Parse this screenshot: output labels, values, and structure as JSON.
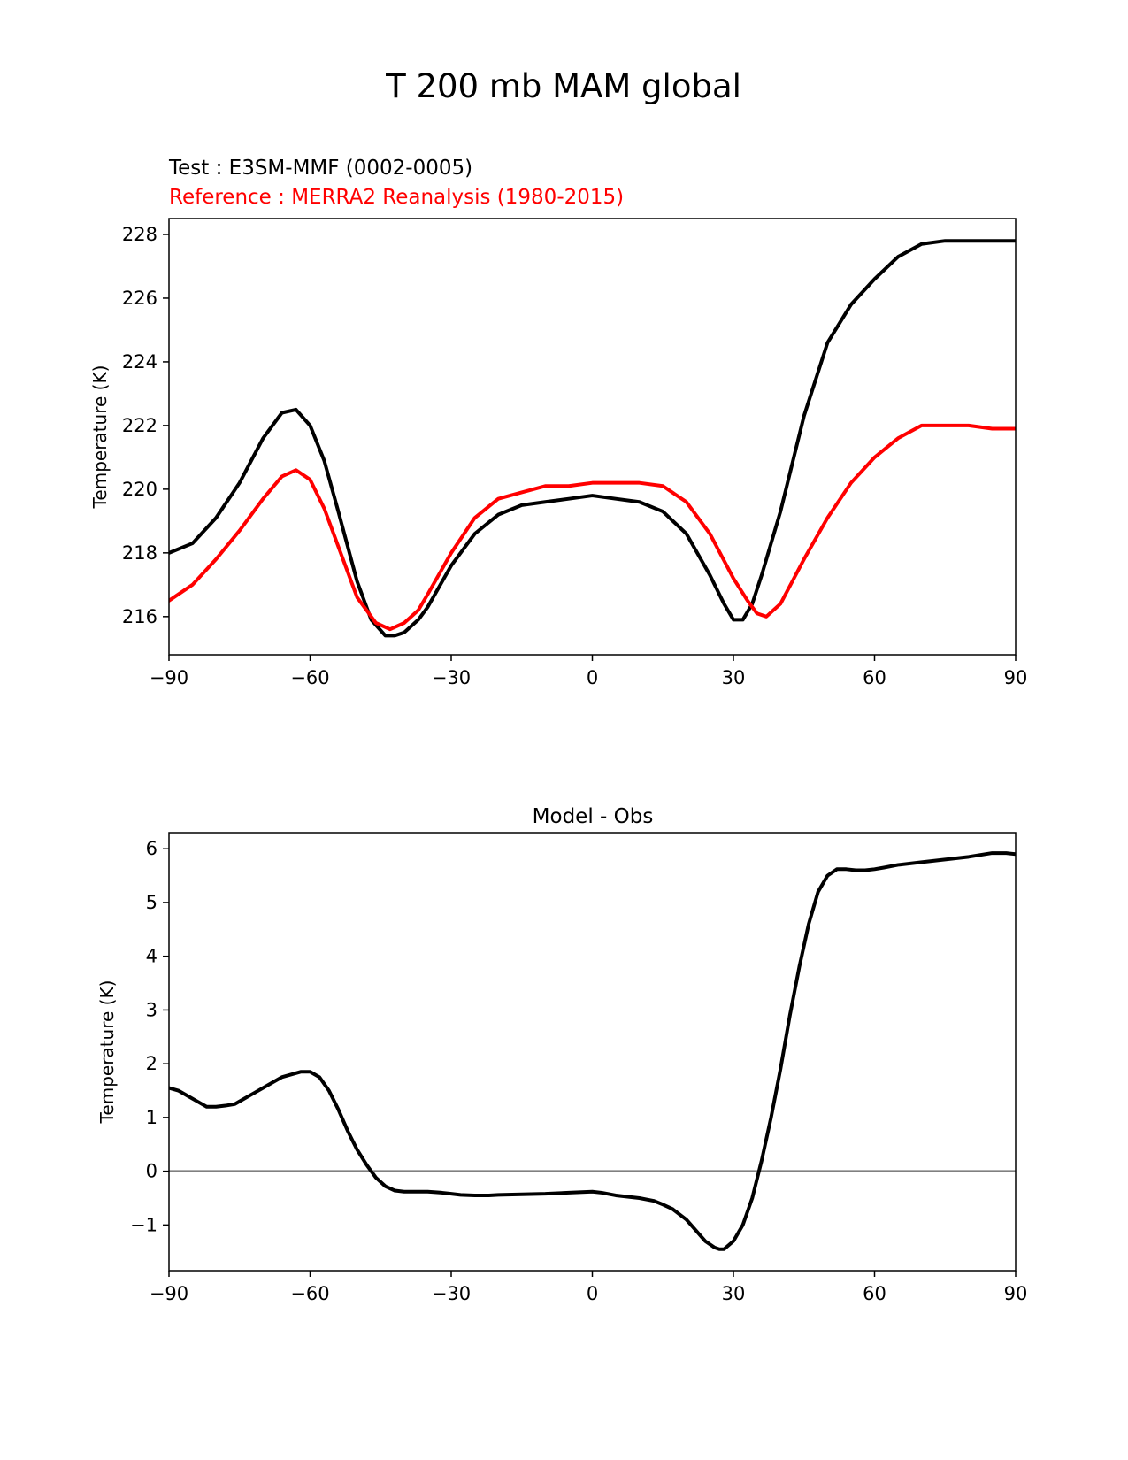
{
  "title": "T 200 mb MAM global",
  "colors": {
    "test": "#000000",
    "reference": "#ff0000",
    "zero_line": "#808080"
  },
  "chart_data": [
    {
      "type": "line",
      "title": "",
      "legend": [
        {
          "text": "Test : E3SM-MMF (0002-0005)",
          "color": "#000000"
        },
        {
          "text": "Reference : MERRA2 Reanalysis (1980-2015)",
          "color": "#ff0000"
        }
      ],
      "xlabel": "",
      "ylabel": "Temperature (K)",
      "xlim": [
        -90,
        90
      ],
      "ylim": [
        214.8,
        228.5
      ],
      "xticks": [
        -90,
        -60,
        -30,
        0,
        30,
        60,
        90
      ],
      "xtick_labels": [
        "−90",
        "−60",
        "−30",
        "0",
        "30",
        "60",
        "90"
      ],
      "yticks": [
        216,
        218,
        220,
        222,
        224,
        226,
        228
      ],
      "ytick_labels": [
        "216",
        "218",
        "220",
        "222",
        "224",
        "226",
        "228"
      ],
      "series": [
        {
          "name": "Test : E3SM-MMF (0002-0005)",
          "color": "#000000",
          "x": [
            -90,
            -85,
            -80,
            -75,
            -70,
            -66,
            -63,
            -60,
            -57,
            -54,
            -50,
            -47,
            -44,
            -42,
            -40,
            -37,
            -35,
            -30,
            -25,
            -20,
            -15,
            -10,
            -5,
            0,
            5,
            10,
            15,
            20,
            25,
            28,
            30,
            32,
            34,
            36,
            40,
            45,
            50,
            55,
            60,
            65,
            70,
            75,
            80,
            85,
            90
          ],
          "y": [
            218.0,
            218.3,
            219.1,
            220.2,
            221.6,
            222.4,
            222.5,
            222.0,
            220.9,
            219.3,
            217.1,
            215.9,
            215.4,
            215.4,
            215.5,
            215.9,
            216.3,
            217.6,
            218.6,
            219.2,
            219.5,
            219.6,
            219.7,
            219.8,
            219.7,
            219.6,
            219.3,
            218.6,
            217.3,
            216.4,
            215.9,
            215.9,
            216.4,
            217.3,
            219.3,
            222.3,
            224.6,
            225.8,
            226.6,
            227.3,
            227.7,
            227.8,
            227.8,
            227.8,
            227.8
          ]
        },
        {
          "name": "Reference : MERRA2 Reanalysis (1980-2015)",
          "color": "#ff0000",
          "x": [
            -90,
            -85,
            -80,
            -75,
            -70,
            -66,
            -63,
            -60,
            -57,
            -54,
            -50,
            -46,
            -43,
            -40,
            -37,
            -35,
            -30,
            -25,
            -20,
            -15,
            -10,
            -5,
            0,
            5,
            10,
            15,
            20,
            25,
            30,
            33,
            35,
            37,
            40,
            45,
            50,
            55,
            60,
            65,
            70,
            75,
            80,
            85,
            90
          ],
          "y": [
            216.5,
            217.0,
            217.8,
            218.7,
            219.7,
            220.4,
            220.6,
            220.3,
            219.4,
            218.2,
            216.6,
            215.8,
            215.6,
            215.8,
            216.2,
            216.7,
            218.0,
            219.1,
            219.7,
            219.9,
            220.1,
            220.1,
            220.2,
            220.2,
            220.2,
            220.1,
            219.6,
            218.6,
            217.2,
            216.5,
            216.1,
            216.0,
            216.4,
            217.8,
            219.1,
            220.2,
            221.0,
            221.6,
            222.0,
            222.0,
            222.0,
            221.9,
            221.9
          ]
        }
      ]
    },
    {
      "type": "line",
      "title": "Model - Obs",
      "xlabel": "",
      "ylabel": "Temperature (K)",
      "xlim": [
        -90,
        90
      ],
      "ylim": [
        -1.85,
        6.3
      ],
      "xticks": [
        -90,
        -60,
        -30,
        0,
        30,
        60,
        90
      ],
      "xtick_labels": [
        "−90",
        "−60",
        "−30",
        "0",
        "30",
        "60",
        "90"
      ],
      "yticks": [
        -1,
        0,
        1,
        2,
        3,
        4,
        5,
        6
      ],
      "ytick_labels": [
        "−1",
        "0",
        "1",
        "2",
        "3",
        "4",
        "5",
        "6"
      ],
      "hline": {
        "y": 0,
        "color": "#808080"
      },
      "series": [
        {
          "name": "Model - Obs",
          "color": "#000000",
          "x": [
            -90,
            -88,
            -86,
            -84,
            -82,
            -80,
            -78,
            -76,
            -74,
            -72,
            -70,
            -68,
            -66,
            -64,
            -62,
            -60,
            -58,
            -56,
            -54,
            -52,
            -50,
            -48,
            -46,
            -44,
            -42,
            -40,
            -38,
            -35,
            -32,
            -30,
            -28,
            -25,
            -22,
            -20,
            -15,
            -10,
            -5,
            0,
            2,
            5,
            10,
            13,
            15,
            17,
            20,
            22,
            24,
            26,
            27,
            28,
            30,
            32,
            34,
            36,
            38,
            40,
            42,
            44,
            46,
            48,
            50,
            52,
            54,
            56,
            58,
            60,
            62,
            65,
            70,
            75,
            80,
            85,
            88,
            90
          ],
          "y": [
            1.55,
            1.5,
            1.4,
            1.3,
            1.2,
            1.2,
            1.22,
            1.25,
            1.35,
            1.45,
            1.55,
            1.65,
            1.75,
            1.8,
            1.85,
            1.85,
            1.75,
            1.5,
            1.15,
            0.75,
            0.4,
            0.12,
            -0.12,
            -0.28,
            -0.36,
            -0.38,
            -0.38,
            -0.38,
            -0.4,
            -0.42,
            -0.44,
            -0.45,
            -0.45,
            -0.44,
            -0.43,
            -0.42,
            -0.4,
            -0.38,
            -0.4,
            -0.45,
            -0.5,
            -0.55,
            -0.62,
            -0.7,
            -0.9,
            -1.1,
            -1.3,
            -1.42,
            -1.45,
            -1.45,
            -1.3,
            -1.0,
            -0.5,
            0.2,
            1.0,
            1.9,
            2.9,
            3.8,
            4.6,
            5.2,
            5.5,
            5.62,
            5.62,
            5.6,
            5.6,
            5.62,
            5.65,
            5.7,
            5.75,
            5.8,
            5.85,
            5.92,
            5.92,
            5.9
          ]
        }
      ]
    }
  ]
}
